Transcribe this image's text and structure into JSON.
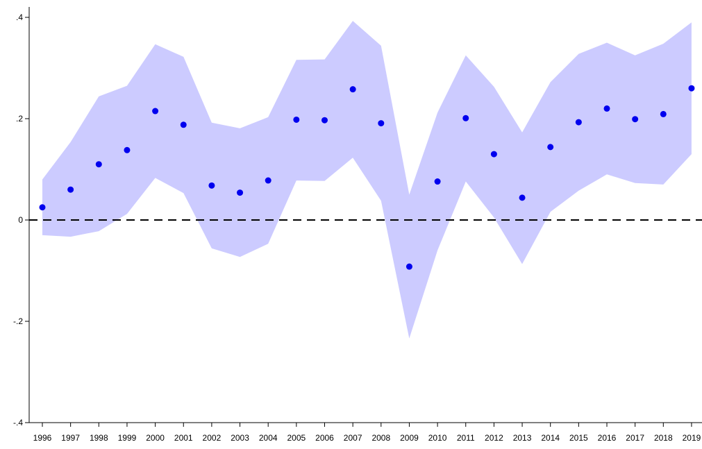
{
  "chart_data": {
    "type": "scatter",
    "title": "",
    "xlabel": "",
    "ylabel": "",
    "categories": [
      "1996",
      "1997",
      "1998",
      "1999",
      "2000",
      "2001",
      "2002",
      "2003",
      "2004",
      "2005",
      "2006",
      "2007",
      "2008",
      "2009",
      "2010",
      "2011",
      "2012",
      "2013",
      "2014",
      "2015",
      "2016",
      "2017",
      "2018",
      "2019"
    ],
    "series": [
      {
        "values": [
          0.025,
          0.06,
          0.11,
          0.138,
          0.215,
          0.188,
          0.068,
          0.054,
          0.078,
          0.198,
          0.197,
          0.258,
          0.191,
          -0.092,
          0.076,
          0.201,
          0.13,
          0.044,
          0.144,
          0.193,
          0.22,
          0.199,
          0.209,
          0.26
        ],
        "ci_upper": [
          0.08,
          0.154,
          0.244,
          0.265,
          0.347,
          0.322,
          0.192,
          0.181,
          0.203,
          0.316,
          0.317,
          0.393,
          0.344,
          0.05,
          0.212,
          0.325,
          0.263,
          0.173,
          0.272,
          0.328,
          0.35,
          0.325,
          0.348,
          0.39
        ],
        "ci_lower": [
          -0.03,
          -0.033,
          -0.022,
          0.012,
          0.083,
          0.053,
          -0.056,
          -0.073,
          -0.047,
          0.078,
          0.077,
          0.123,
          0.038,
          -0.234,
          -0.06,
          0.076,
          0.005,
          -0.087,
          0.016,
          0.058,
          0.09,
          0.073,
          0.07,
          0.13
        ]
      }
    ],
    "ylim": [
      -0.4,
      0.4
    ],
    "yticks": [
      ".4",
      ".2",
      "0",
      "-.2",
      "-.4"
    ],
    "reference_line": 0,
    "grid": false,
    "colors": {
      "point": "#0000ee",
      "band": "#cccbff",
      "reference_line": "#000000",
      "axis": "#000000"
    }
  }
}
